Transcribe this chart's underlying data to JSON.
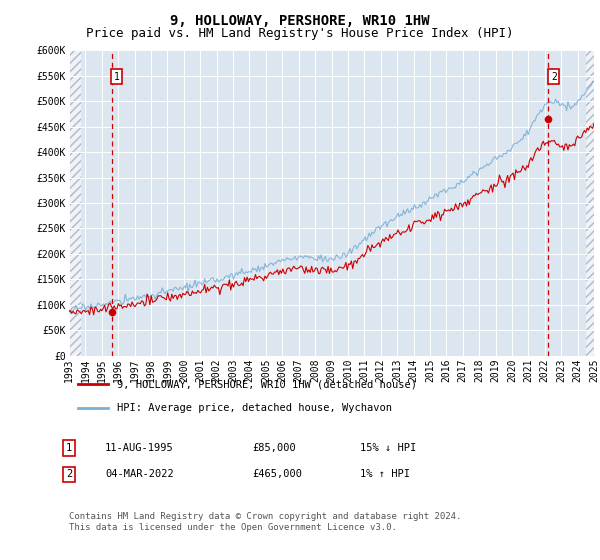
{
  "title": "9, HOLLOWAY, PERSHORE, WR10 1HW",
  "subtitle": "Price paid vs. HM Land Registry's House Price Index (HPI)",
  "ylabel_ticks": [
    "£0",
    "£50K",
    "£100K",
    "£150K",
    "£200K",
    "£250K",
    "£300K",
    "£350K",
    "£400K",
    "£450K",
    "£500K",
    "£550K",
    "£600K"
  ],
  "ytick_values": [
    0,
    50000,
    100000,
    150000,
    200000,
    250000,
    300000,
    350000,
    400000,
    450000,
    500000,
    550000,
    600000
  ],
  "ylim": [
    0,
    600000
  ],
  "xmin_year": 1993,
  "xmax_year": 2025,
  "xtick_years": [
    1993,
    1994,
    1995,
    1996,
    1997,
    1998,
    1999,
    2000,
    2001,
    2002,
    2003,
    2004,
    2005,
    2006,
    2007,
    2008,
    2009,
    2010,
    2011,
    2012,
    2013,
    2014,
    2015,
    2016,
    2017,
    2018,
    2019,
    2020,
    2021,
    2022,
    2023,
    2024,
    2025
  ],
  "hatch_left_end": 1993.75,
  "hatch_right_start": 2024.5,
  "sale1_x": 1995.61,
  "sale1_y": 85000,
  "sale2_x": 2022.17,
  "sale2_y": 465000,
  "sale_color": "#cc0000",
  "hpi_color": "#7bafd4",
  "bg_color": "#dce6f1",
  "hatch_color": "#b0b8c8",
  "grid_color": "#ffffff",
  "legend_entry1": "9, HOLLOWAY, PERSHORE, WR10 1HW (detached house)",
  "legend_entry2": "HPI: Average price, detached house, Wychavon",
  "annotation1_date": "11-AUG-1995",
  "annotation1_price": "£85,000",
  "annotation1_hpi": "15% ↓ HPI",
  "annotation2_date": "04-MAR-2022",
  "annotation2_price": "£465,000",
  "annotation2_hpi": "1% ↑ HPI",
  "footer": "Contains HM Land Registry data © Crown copyright and database right 2024.\nThis data is licensed under the Open Government Licence v3.0.",
  "title_fontsize": 10,
  "subtitle_fontsize": 9,
  "tick_fontsize": 7,
  "legend_fontsize": 7.5,
  "annotation_fontsize": 7.5
}
